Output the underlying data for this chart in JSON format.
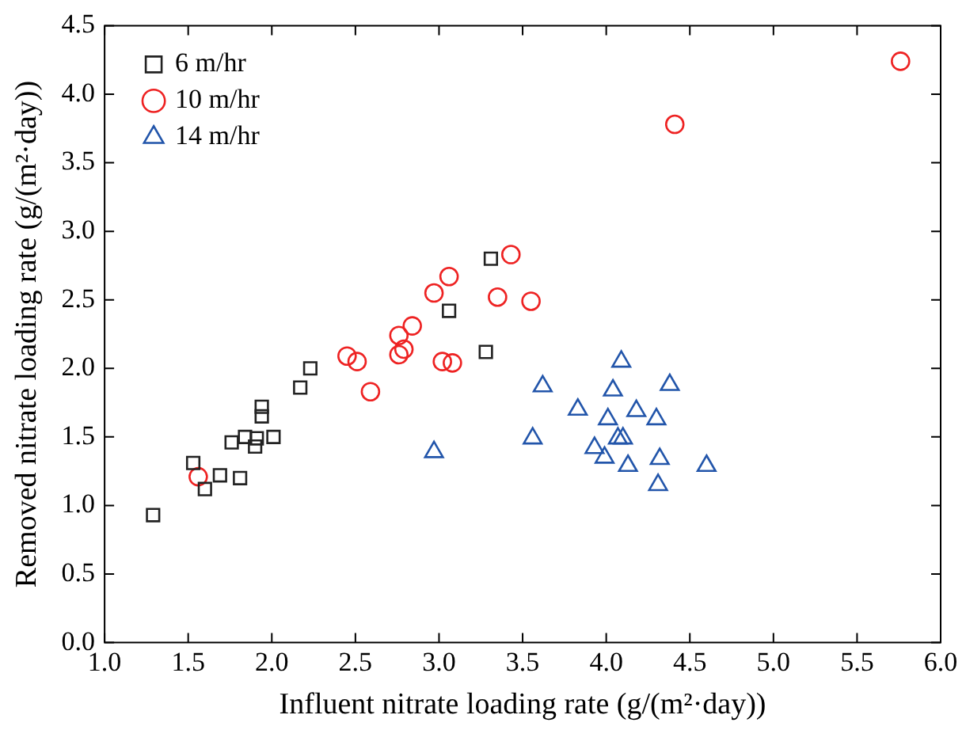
{
  "chart_data": {
    "type": "scatter",
    "xlabel": "Influent nitrate loading rate (g/(m²·day))",
    "ylabel": "Removed nitrate loading rate (g/(m²·day))",
    "xlim": [
      1.0,
      6.0
    ],
    "xticks": [
      {
        "value": 1,
        "label": "1.0"
      },
      1.5,
      {
        "value": 2,
        "label": "2.0"
      },
      2.5,
      {
        "value": 3,
        "label": "3.0"
      },
      3.5,
      {
        "value": 4,
        "label": "4.0"
      },
      4.5,
      {
        "value": 5,
        "label": "5.0"
      },
      5.5,
      {
        "value": 6,
        "label": "6.0"
      }
    ],
    "ylim": [
      0.0,
      4.5
    ],
    "yticks": [
      {
        "value": 0,
        "label": "0.0"
      },
      0.5,
      {
        "value": 1,
        "label": "1.0"
      },
      1.5,
      {
        "value": 2,
        "label": "2.0"
      },
      2.5,
      {
        "value": 3,
        "label": "3.0"
      },
      3.5,
      {
        "value": 4,
        "label": "4.0"
      },
      4.5
    ],
    "grid": false,
    "legend": "top left",
    "series": [
      {
        "name": "6 m/hr",
        "color": "#222222",
        "marker": "square",
        "x": [
          1.29,
          1.53,
          1.6,
          1.69,
          1.76,
          1.81,
          1.84,
          1.9,
          1.91,
          1.94,
          1.94,
          2.01,
          2.17,
          2.23,
          3.06,
          3.28,
          3.31
        ],
        "values": [
          0.93,
          1.31,
          1.12,
          1.22,
          1.46,
          1.2,
          1.5,
          1.43,
          1.49,
          1.72,
          1.65,
          1.5,
          1.86,
          2.0,
          2.42,
          2.12,
          2.8
        ]
      },
      {
        "name": "10 m/hr",
        "color": "#ee2222",
        "marker": "circle",
        "x": [
          1.56,
          2.45,
          2.51,
          2.59,
          2.76,
          2.84,
          2.79,
          2.76,
          2.97,
          3.02,
          3.08,
          3.35,
          3.43,
          3.06,
          3.55,
          4.41,
          5.76
        ],
        "values": [
          1.21,
          2.09,
          2.05,
          1.83,
          2.24,
          2.31,
          2.14,
          2.1,
          2.55,
          2.05,
          2.04,
          2.52,
          2.83,
          2.67,
          2.49,
          3.78,
          4.24
        ]
      },
      {
        "name": "14 m/hr",
        "color": "#2255aa",
        "marker": "triangle",
        "x": [
          2.97,
          3.56,
          3.62,
          3.83,
          4.09,
          4.04,
          4.38,
          4.01,
          4.18,
          4.3,
          3.93,
          3.99,
          4.07,
          4.1,
          4.13,
          4.32,
          4.31,
          4.6
        ],
        "values": [
          1.39,
          1.49,
          1.87,
          1.7,
          2.05,
          1.84,
          1.88,
          1.63,
          1.69,
          1.63,
          1.42,
          1.35,
          1.49,
          1.49,
          1.29,
          1.34,
          1.15,
          1.29
        ]
      }
    ]
  }
}
